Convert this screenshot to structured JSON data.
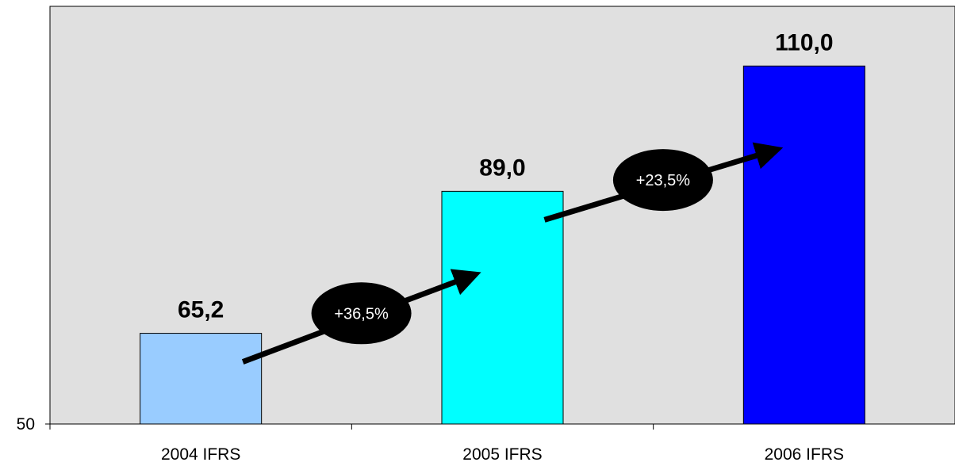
{
  "chart_data": {
    "type": "bar",
    "categories": [
      "2004 IFRS",
      "2005 IFRS",
      "2006 IFRS"
    ],
    "values": [
      65.2,
      89.0,
      110.0
    ],
    "value_labels": [
      "65,2",
      "89,0",
      "110,0"
    ],
    "bar_colors": [
      "#99ccff",
      "#00ffff",
      "#0000ff"
    ],
    "ylim": [
      50,
      120
    ],
    "y_tick_labels": [
      "50"
    ],
    "plot_background": "#e0e0e0",
    "grid": false,
    "growth_annotations": [
      {
        "from": "2004 IFRS",
        "to": "2005 IFRS",
        "label": "+36,5%"
      },
      {
        "from": "2005 IFRS",
        "to": "2006 IFRS",
        "label": "+23,5%"
      }
    ],
    "title": "",
    "xlabel": "",
    "ylabel": ""
  }
}
